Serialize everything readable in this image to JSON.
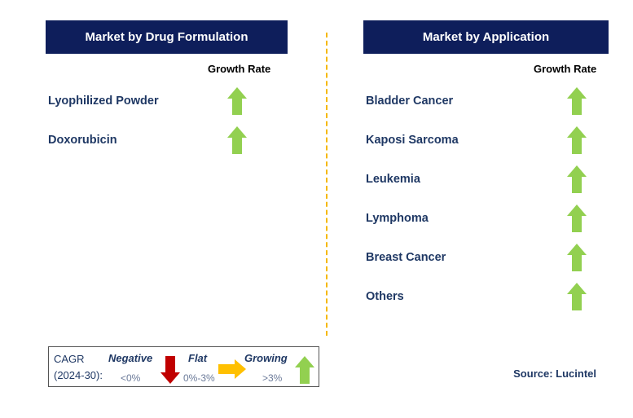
{
  "left_panel": {
    "title": "Market by Drug Formulation",
    "growth_label": "Growth Rate",
    "items": [
      {
        "label": "Lyophilized Powder",
        "trend": "growing"
      },
      {
        "label": "Doxorubicin",
        "trend": "growing"
      }
    ]
  },
  "right_panel": {
    "title": "Market by Application",
    "growth_label": "Growth Rate",
    "items": [
      {
        "label": "Bladder Cancer",
        "trend": "growing"
      },
      {
        "label": "Kaposi Sarcoma",
        "trend": "growing"
      },
      {
        "label": "Leukemia",
        "trend": "growing"
      },
      {
        "label": "Lymphoma",
        "trend": "growing"
      },
      {
        "label": "Breast Cancer",
        "trend": "growing"
      },
      {
        "label": "Others",
        "trend": "growing"
      }
    ]
  },
  "legend": {
    "cagr": "CAGR",
    "period": "(2024-30):",
    "negative": "Negative",
    "negative_range": "<0%",
    "flat": "Flat",
    "flat_range": "0%-3%",
    "growing": "Growing",
    "growing_range": ">3%"
  },
  "source": "Source: Lucintel",
  "colors": {
    "header": "#0E1E5B",
    "growing": "#92D050",
    "negative": "#C00000",
    "flat": "#FFC000",
    "divider": "#F5B800"
  }
}
